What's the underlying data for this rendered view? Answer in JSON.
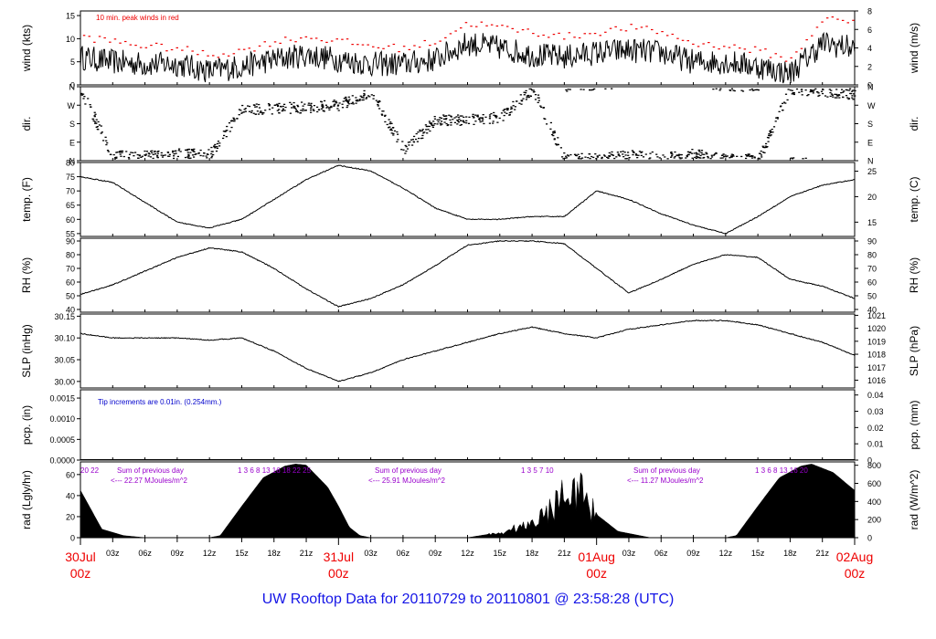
{
  "footer_title": "UW Rooftop Data for 20110729  to  20110801 @ 23:58:28  (UTC)",
  "colors": {
    "axes": "#000000",
    "peak": "#ee0000",
    "note": "#0000cc",
    "solar": "#9900cc",
    "footer": "#1515e6",
    "date": "#ee0000"
  },
  "chart_data": [
    {
      "id": "wind",
      "type": "line",
      "ylabel_left": "wind (kts)",
      "ylabel_right": "wind (m/s)",
      "ylim": [
        0,
        16
      ],
      "yticks": [
        0,
        5,
        10,
        15
      ],
      "right_ylim": [
        0,
        8
      ],
      "right_yticks": [
        0,
        2,
        4,
        6,
        8
      ],
      "annotation": "10 min. peak winds in red",
      "x_hours": [
        0,
        3,
        6,
        9,
        12,
        15,
        18,
        21,
        24,
        27,
        30,
        33,
        36,
        39,
        42,
        45,
        48,
        51,
        54,
        57,
        60,
        63,
        66,
        69,
        72
      ],
      "series": [
        {
          "name": "",
          "values": [
            6,
            5,
            4.5,
            4.5,
            3,
            4,
            5.5,
            6.5,
            5.5,
            4.5,
            4.5,
            5.5,
            9,
            8,
            6.5,
            6,
            7,
            7.5,
            7,
            5,
            5,
            4,
            2.5,
            9,
            8
          ]
        },
        {
          "name": "10 min. peak winds in red",
          "values": [
            10,
            9,
            8,
            7.5,
            6,
            7,
            9,
            10,
            9,
            8,
            7.5,
            9,
            13,
            12,
            11,
            10,
            11,
            12,
            11,
            8.5,
            8,
            7,
            5,
            14,
            13
          ]
        }
      ]
    },
    {
      "id": "dir",
      "type": "scatter",
      "ylabel_left": "dir.",
      "ylabel_right": "dir.",
      "yticks": [
        0,
        90,
        180,
        270,
        360
      ],
      "ytick_labels": [
        "N",
        "E",
        "S",
        "W",
        "N"
      ],
      "x_hours": [
        0,
        3,
        6,
        9,
        12,
        15,
        18,
        21,
        24,
        27,
        30,
        33,
        36,
        39,
        42,
        45,
        48,
        51,
        54,
        57,
        60,
        63,
        66,
        69,
        72
      ],
      "values": [
        340,
        20,
        20,
        30,
        30,
        250,
        255,
        260,
        270,
        330,
        55,
        195,
        200,
        210,
        350,
        5,
        10,
        25,
        20,
        30,
        5,
        5,
        350,
        340,
        320
      ]
    },
    {
      "id": "temp",
      "type": "line",
      "ylabel_left": "temp. (F)",
      "ylabel_right": "temp. (C)",
      "ylim": [
        54,
        80
      ],
      "yticks": [
        55,
        60,
        65,
        70,
        75,
        80
      ],
      "right_ylim": [
        12.2,
        26.7
      ],
      "right_yticks": [
        15,
        20,
        25
      ],
      "x_hours": [
        0,
        3,
        6,
        9,
        12,
        15,
        18,
        21,
        24,
        27,
        30,
        33,
        36,
        39,
        42,
        45,
        48,
        51,
        54,
        57,
        60,
        63,
        66,
        69,
        72
      ],
      "values": [
        75,
        73,
        66,
        59,
        57,
        60,
        67,
        74,
        79,
        77,
        71,
        64,
        60,
        60,
        61,
        61,
        70,
        67,
        62,
        58,
        55,
        61,
        68,
        72,
        74
      ]
    },
    {
      "id": "rh",
      "type": "line",
      "ylabel_left": "RH (%)",
      "ylabel_right": "RH (%)",
      "ylim": [
        38,
        92
      ],
      "yticks": [
        40,
        50,
        60,
        70,
        80,
        90
      ],
      "right_ylim": [
        38,
        92
      ],
      "right_yticks": [
        40,
        50,
        60,
        70,
        80,
        90
      ],
      "x_hours": [
        0,
        3,
        6,
        9,
        12,
        15,
        18,
        21,
        24,
        27,
        30,
        33,
        36,
        39,
        42,
        45,
        48,
        51,
        54,
        57,
        60,
        63,
        66,
        69,
        72
      ],
      "values": [
        51,
        58,
        68,
        78,
        85,
        82,
        70,
        55,
        42,
        48,
        58,
        72,
        87,
        90,
        90,
        88,
        70,
        52,
        62,
        73,
        80,
        78,
        62,
        57,
        48
      ]
    },
    {
      "id": "slp",
      "type": "line",
      "ylabel_left": "SLP (inHg)",
      "ylabel_right": "SLP (hPa)",
      "ylim": [
        29.985,
        30.155
      ],
      "yticks": [
        30.0,
        30.05,
        30.1,
        30.15
      ],
      "ytick_labels": [
        "30.00",
        "30.05",
        "30.10",
        "30.15"
      ],
      "right_ylim": [
        1015.4,
        1021.1
      ],
      "right_yticks": [
        1016,
        1017,
        1018,
        1019,
        1020,
        1021
      ],
      "x_hours": [
        0,
        3,
        6,
        9,
        12,
        15,
        18,
        21,
        24,
        27,
        30,
        33,
        36,
        39,
        42,
        45,
        48,
        51,
        54,
        57,
        60,
        63,
        66,
        69,
        72
      ],
      "values": [
        30.11,
        30.1,
        30.1,
        30.1,
        30.095,
        30.1,
        30.07,
        30.03,
        30.0,
        30.02,
        30.05,
        30.07,
        30.09,
        30.11,
        30.125,
        30.11,
        30.1,
        30.12,
        30.13,
        30.14,
        30.14,
        30.13,
        30.11,
        30.09,
        30.06
      ]
    },
    {
      "id": "pcp",
      "type": "line",
      "ylabel_left": "pcp. (in)",
      "ylabel_right": "pcp. (mm)",
      "ylim": [
        0,
        0.0017
      ],
      "yticks": [
        0,
        0.0005,
        0.001,
        0.0015
      ],
      "ytick_labels": [
        "0.0000",
        "0.0005",
        "0.0010",
        "0.0015"
      ],
      "right_ylim": [
        0,
        0.0432
      ],
      "right_yticks": [
        0,
        0.01,
        0.02,
        0.03,
        0.04
      ],
      "right_ytick_labels": [
        "0",
        "0.01",
        "0.02",
        "0.03",
        "0.04"
      ],
      "annotation": "Tip increments are 0.01in. (0.254mm.)",
      "x_hours": [
        0,
        72
      ],
      "values": [
        0,
        0
      ]
    },
    {
      "id": "rad",
      "type": "area",
      "ylabel_left": "rad (Lgly/hr)",
      "ylabel_right": "rad (W/m^2)",
      "ylim": [
        0,
        72
      ],
      "yticks": [
        0,
        20,
        40,
        60
      ],
      "right_ylim": [
        0,
        837
      ],
      "right_yticks": [
        0,
        200,
        400,
        600,
        800
      ],
      "x_hours": [
        0,
        2,
        4,
        6,
        9,
        12,
        13,
        15,
        17,
        19,
        20,
        21,
        23,
        24,
        25,
        26,
        27,
        30,
        36,
        39,
        42,
        43,
        44,
        45,
        46,
        47,
        48,
        50,
        53,
        60,
        61,
        63,
        65,
        67,
        68,
        70,
        72
      ],
      "values": [
        45,
        8,
        2,
        0,
        0,
        0,
        2,
        30,
        57,
        68,
        70,
        69,
        48,
        30,
        10,
        2,
        0,
        0,
        0,
        5,
        15,
        25,
        30,
        60,
        55,
        40,
        22,
        6,
        0,
        0,
        2,
        30,
        57,
        68,
        70,
        62,
        45
      ],
      "solar_labels": [
        {
          "left": "20  22",
          "title": "Sum of previous day",
          "value": "<--- 22.27  MJoules/m^2",
          "right": "1   3   6   8  13  16  18  22  25"
        },
        {
          "title": "Sum of previous day",
          "value": "<--- 25.91  MJoules/m^2",
          "right": "1      3    5    7    10"
        },
        {
          "title": "Sum of previous day",
          "value": "<--- 11.27  MJoules/m^2",
          "right": "1   3   6   8  13  16  20"
        }
      ]
    }
  ],
  "x_axis": {
    "tick_labels": [
      "03z",
      "06z",
      "09z",
      "12z",
      "15z",
      "18z",
      "21z",
      "03z",
      "06z",
      "09z",
      "12z",
      "15z",
      "18z",
      "21z",
      "03z",
      "06z",
      "09z",
      "12z",
      "15z",
      "18z",
      "21z"
    ],
    "tick_hours": [
      3,
      6,
      9,
      12,
      15,
      18,
      21,
      27,
      30,
      33,
      36,
      39,
      42,
      45,
      51,
      54,
      57,
      60,
      63,
      66,
      69
    ],
    "dates": [
      {
        "hour": 0,
        "line1": "30Jul",
        "line2": "00z"
      },
      {
        "hour": 24,
        "line1": "31Jul",
        "line2": "00z"
      },
      {
        "hour": 48,
        "line1": "01Aug",
        "line2": "00z"
      },
      {
        "hour": 72,
        "line1": "02Aug",
        "line2": "00z"
      }
    ]
  }
}
